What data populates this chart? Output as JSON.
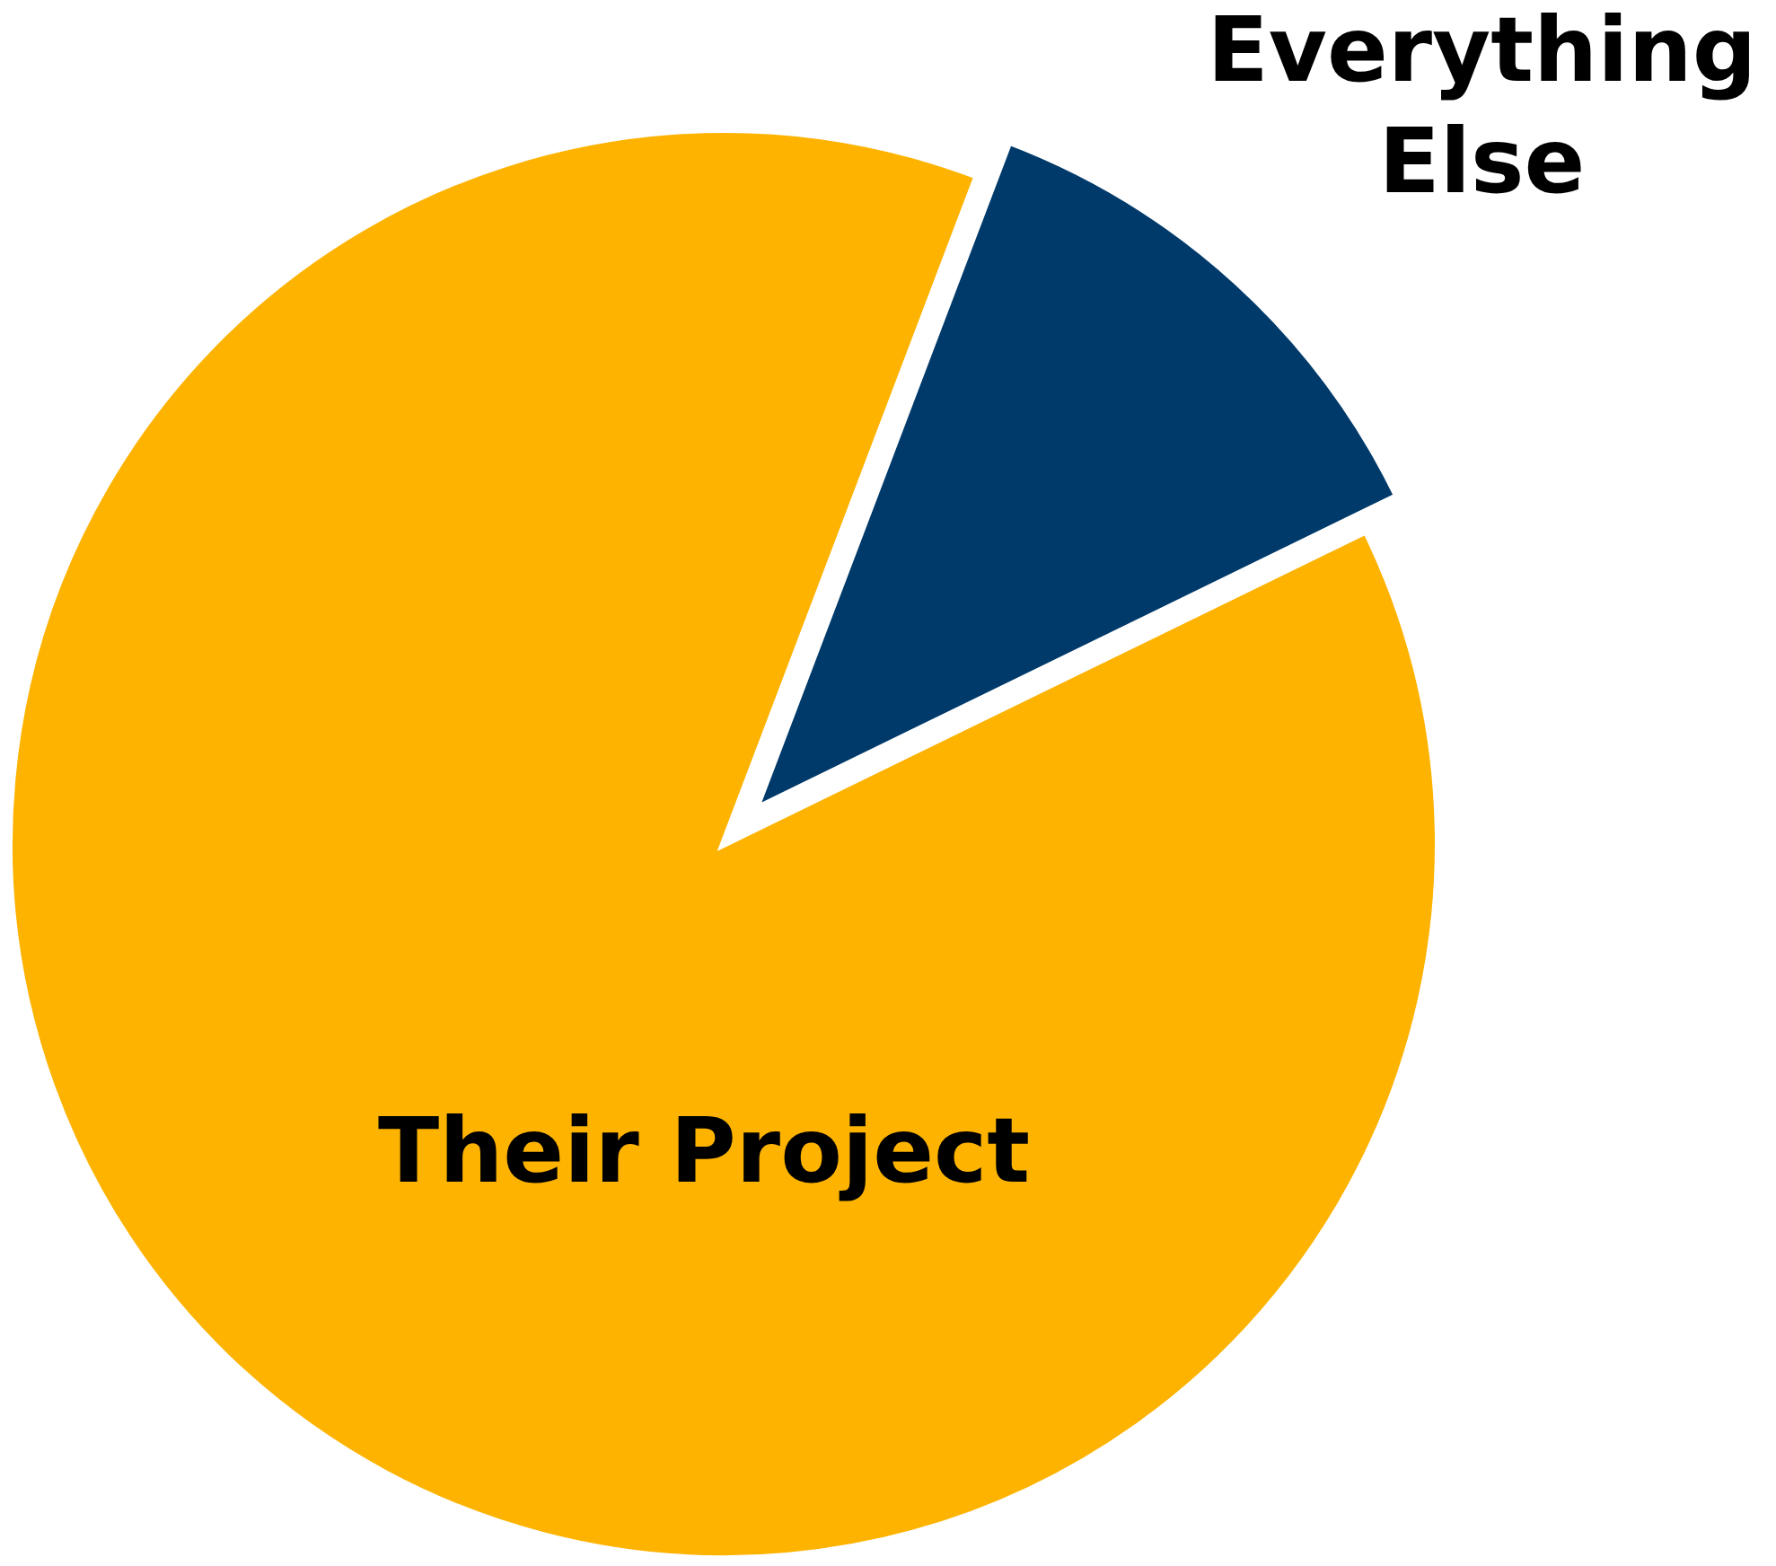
{
  "chart_data": {
    "type": "pie",
    "categories": [
      "Their Project",
      "Everything Else"
    ],
    "values": [
      88,
      12
    ],
    "colors": [
      "#fdb300",
      "#003a6a"
    ]
  }
}
